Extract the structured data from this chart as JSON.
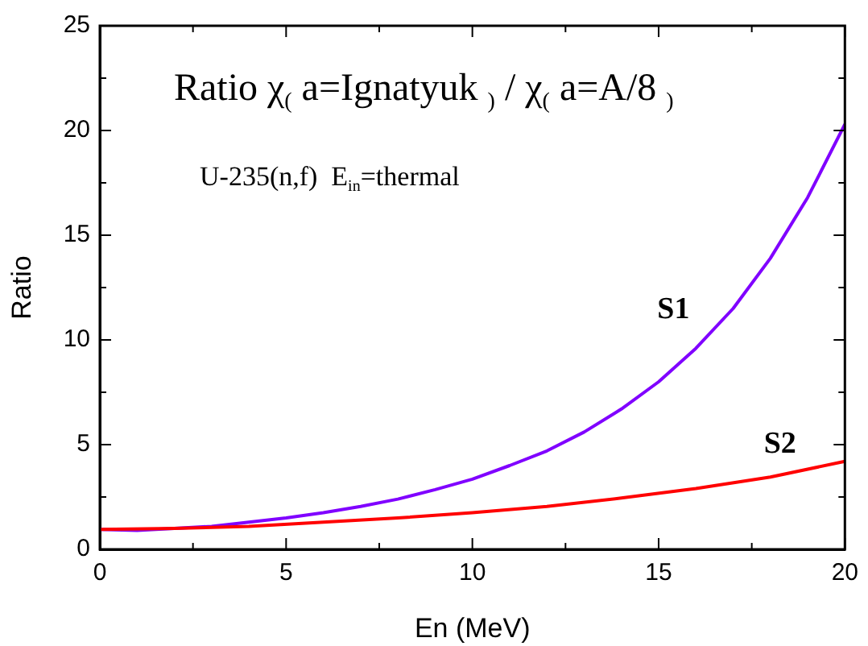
{
  "chart_data": {
    "type": "line",
    "xlabel": "En (MeV)",
    "ylabel": "Ratio",
    "annotations": [
      "Ratio χ$_{(}$ a=Ignatyuk $_{)}$ / χ$_{(}$ a=A/8 $_{)}$",
      "U-235(n,f)  E$_{in}$=thermal"
    ],
    "xlim": [
      0,
      20
    ],
    "ylim": [
      0,
      25
    ],
    "xticks": [
      0,
      {
        "value": 2.5,
        "label": null
      },
      5,
      {
        "value": 7.5,
        "label": null
      },
      10,
      {
        "value": 12.5,
        "label": null
      },
      15,
      {
        "value": 17.5,
        "label": null
      },
      20
    ],
    "yticks": [
      0,
      {
        "value": 2.5,
        "label": null
      },
      5,
      {
        "value": 7.5,
        "label": null
      },
      10,
      {
        "value": 12.5,
        "label": null
      },
      15,
      {
        "value": 17.5,
        "label": null
      },
      20,
      {
        "value": 22.5,
        "label": null
      },
      25
    ],
    "grid": false,
    "legend": false,
    "marker": "none",
    "line_style": "solid",
    "series": [
      {
        "name": "S1",
        "color": "#8000ff",
        "x": [
          0,
          1,
          2,
          3,
          4,
          5,
          6,
          7,
          8,
          9,
          10,
          11,
          12,
          13,
          14,
          15,
          16,
          17,
          18,
          19,
          20
        ],
        "values": [
          0.95,
          0.9,
          1.0,
          1.1,
          1.3,
          1.5,
          1.75,
          2.05,
          2.4,
          2.85,
          3.35,
          4.0,
          4.7,
          5.6,
          6.7,
          8.0,
          9.6,
          11.5,
          13.9,
          16.8,
          20.3
        ]
      },
      {
        "name": "S2",
        "color": "#ff0000",
        "x": [
          0,
          2,
          4,
          6,
          8,
          10,
          12,
          14,
          16,
          18,
          20
        ],
        "values": [
          0.95,
          1.0,
          1.1,
          1.3,
          1.5,
          1.75,
          2.05,
          2.45,
          2.9,
          3.45,
          4.2
        ]
      }
    ]
  }
}
